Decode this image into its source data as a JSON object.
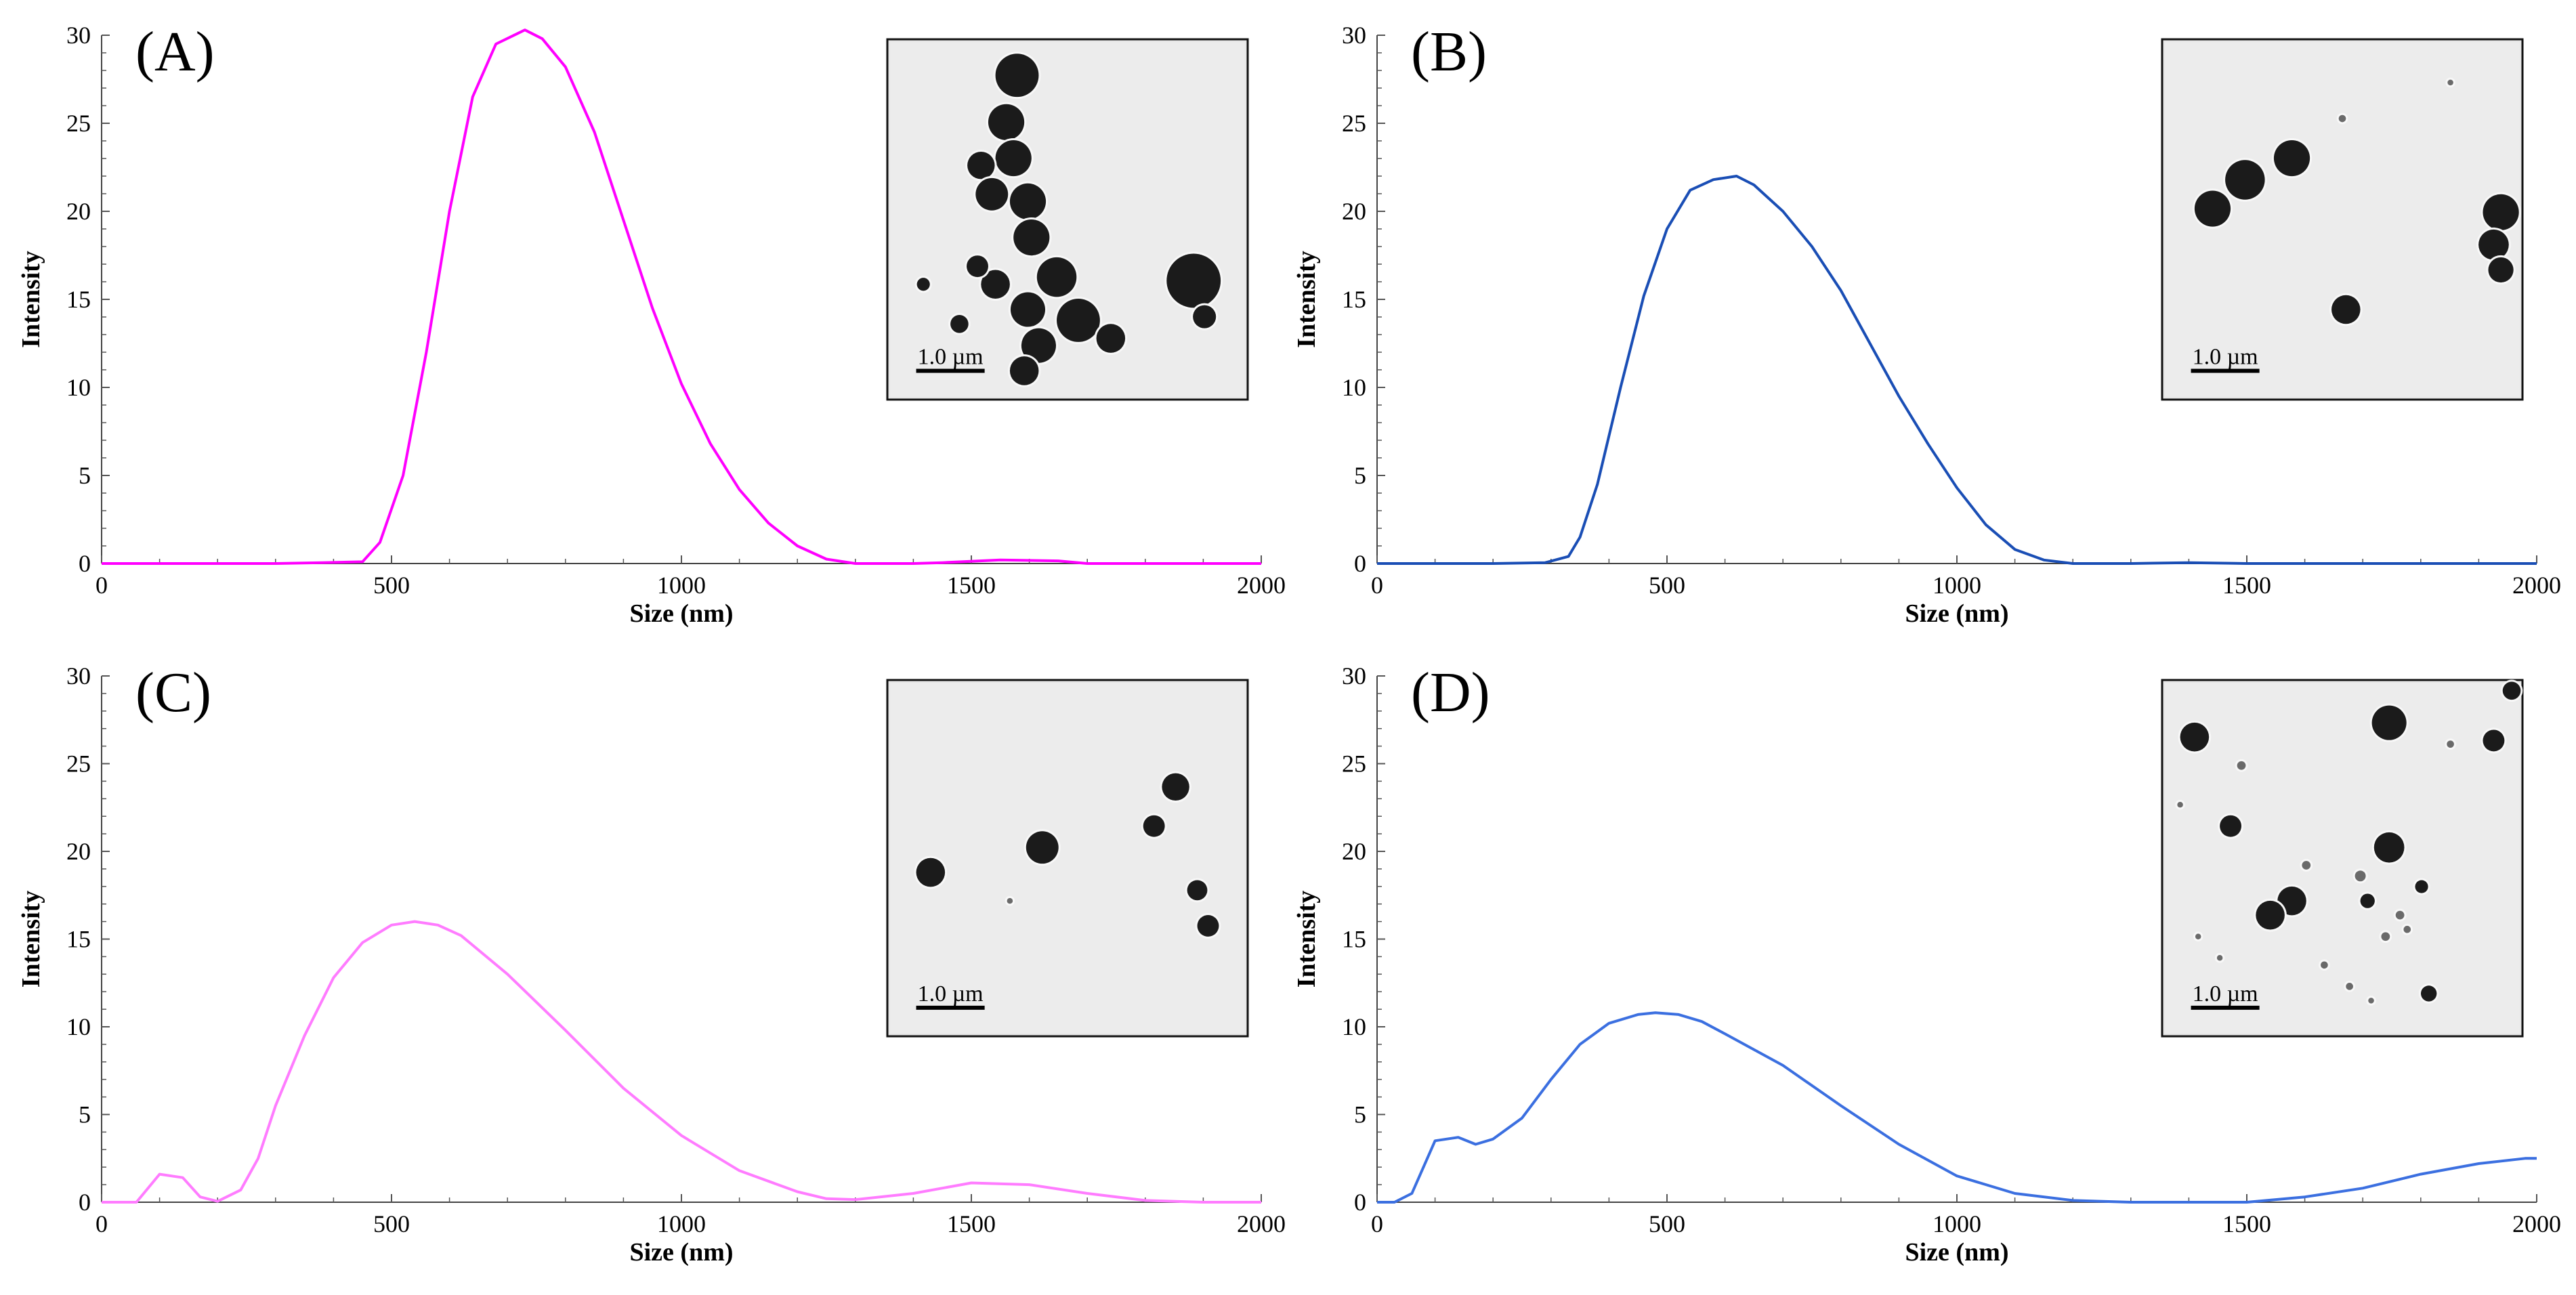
{
  "figure_type": "Dynamic light scattering size distributions with TEM insets",
  "chart_data": [
    {
      "type": "line",
      "panel_label": "(A)",
      "xlabel": "Size (nm)",
      "ylabel": "Intensity",
      "xlim": [
        0,
        2000
      ],
      "ylim": [
        0,
        30
      ],
      "xticks": [
        0,
        500,
        1000,
        1500,
        2000
      ],
      "yticks": [
        0,
        5,
        10,
        15,
        20,
        25,
        30
      ],
      "color": "#ff00ff",
      "inset_scale_label": "1.0 µm",
      "series": [
        {
          "name": "A",
          "x": [
            0,
            100,
            200,
            300,
            380,
            450,
            480,
            520,
            560,
            600,
            640,
            680,
            730,
            760,
            800,
            850,
            900,
            950,
            1000,
            1050,
            1100,
            1150,
            1200,
            1250,
            1300,
            1400,
            1450,
            1550,
            1650,
            1700,
            2000
          ],
          "y": [
            0,
            0,
            0,
            0,
            0.05,
            0.1,
            1.2,
            5,
            12,
            20,
            26.5,
            29.5,
            30.3,
            29.8,
            28.2,
            24.5,
            19.5,
            14.5,
            10.2,
            6.8,
            4.2,
            2.3,
            1,
            0.25,
            0,
            0,
            0.05,
            0.2,
            0.15,
            0,
            0
          ]
        }
      ]
    },
    {
      "type": "line",
      "panel_label": "(B)",
      "xlabel": "Size (nm)",
      "ylabel": "Intensity",
      "xlim": [
        0,
        2000
      ],
      "ylim": [
        0,
        30
      ],
      "xticks": [
        0,
        500,
        1000,
        1500,
        2000
      ],
      "yticks": [
        0,
        5,
        10,
        15,
        20,
        25,
        30
      ],
      "color": "#1a4eb5",
      "inset_scale_label": "1.0 µm",
      "series": [
        {
          "name": "B",
          "x": [
            0,
            100,
            200,
            290,
            330,
            350,
            380,
            420,
            460,
            500,
            540,
            580,
            620,
            650,
            700,
            750,
            800,
            850,
            900,
            950,
            1000,
            1050,
            1100,
            1150,
            1200,
            1300,
            1400,
            1500,
            2000
          ],
          "y": [
            0,
            0,
            0,
            0.05,
            0.4,
            1.5,
            4.5,
            10,
            15.2,
            19,
            21.2,
            21.8,
            22,
            21.5,
            20,
            18,
            15.5,
            12.5,
            9.5,
            6.8,
            4.3,
            2.2,
            0.8,
            0.2,
            0,
            0,
            0.05,
            0,
            0
          ]
        }
      ]
    },
    {
      "type": "line",
      "panel_label": "(C)",
      "xlabel": "Size (nm)",
      "ylabel": "Intensity",
      "xlim": [
        0,
        2000
      ],
      "ylim": [
        0,
        30
      ],
      "xticks": [
        0,
        500,
        1000,
        1500,
        2000
      ],
      "yticks": [
        0,
        5,
        10,
        15,
        20,
        25,
        30
      ],
      "color": "#ff7cff",
      "inset_scale_label": "1.0 µm",
      "series": [
        {
          "name": "C",
          "x": [
            0,
            60,
            100,
            140,
            170,
            200,
            240,
            270,
            300,
            350,
            400,
            450,
            500,
            540,
            580,
            620,
            700,
            800,
            900,
            1000,
            1100,
            1200,
            1250,
            1300,
            1400,
            1500,
            1600,
            1700,
            1800,
            1900,
            2000
          ],
          "y": [
            0,
            0,
            1.6,
            1.4,
            0.3,
            0.05,
            0.7,
            2.5,
            5.5,
            9.5,
            12.8,
            14.8,
            15.8,
            16,
            15.8,
            15.2,
            13,
            9.8,
            6.5,
            3.8,
            1.8,
            0.6,
            0.2,
            0.15,
            0.5,
            1.1,
            1,
            0.5,
            0.1,
            0,
            0
          ]
        }
      ]
    },
    {
      "type": "line",
      "panel_label": "(D)",
      "xlabel": "Size (nm)",
      "ylabel": "Intensity",
      "xlim": [
        0,
        2000
      ],
      "ylim": [
        0,
        30
      ],
      "xticks": [
        0,
        500,
        1000,
        1500,
        2000
      ],
      "yticks": [
        0,
        5,
        10,
        15,
        20,
        25,
        30
      ],
      "color": "#3b6fe0",
      "inset_scale_label": "1.0 µm",
      "series": [
        {
          "name": "D",
          "x": [
            0,
            30,
            60,
            100,
            140,
            170,
            200,
            250,
            300,
            350,
            400,
            450,
            480,
            520,
            560,
            600,
            700,
            800,
            900,
            1000,
            1100,
            1200,
            1300,
            1400,
            1500,
            1600,
            1700,
            1800,
            1900,
            1980,
            2000
          ],
          "y": [
            0,
            0,
            0.5,
            3.5,
            3.7,
            3.3,
            3.6,
            4.8,
            7,
            9,
            10.2,
            10.7,
            10.8,
            10.7,
            10.3,
            9.6,
            7.8,
            5.5,
            3.3,
            1.5,
            0.5,
            0.1,
            0,
            0,
            0,
            0.3,
            0.8,
            1.6,
            2.2,
            2.5,
            2.5
          ]
        }
      ]
    }
  ]
}
